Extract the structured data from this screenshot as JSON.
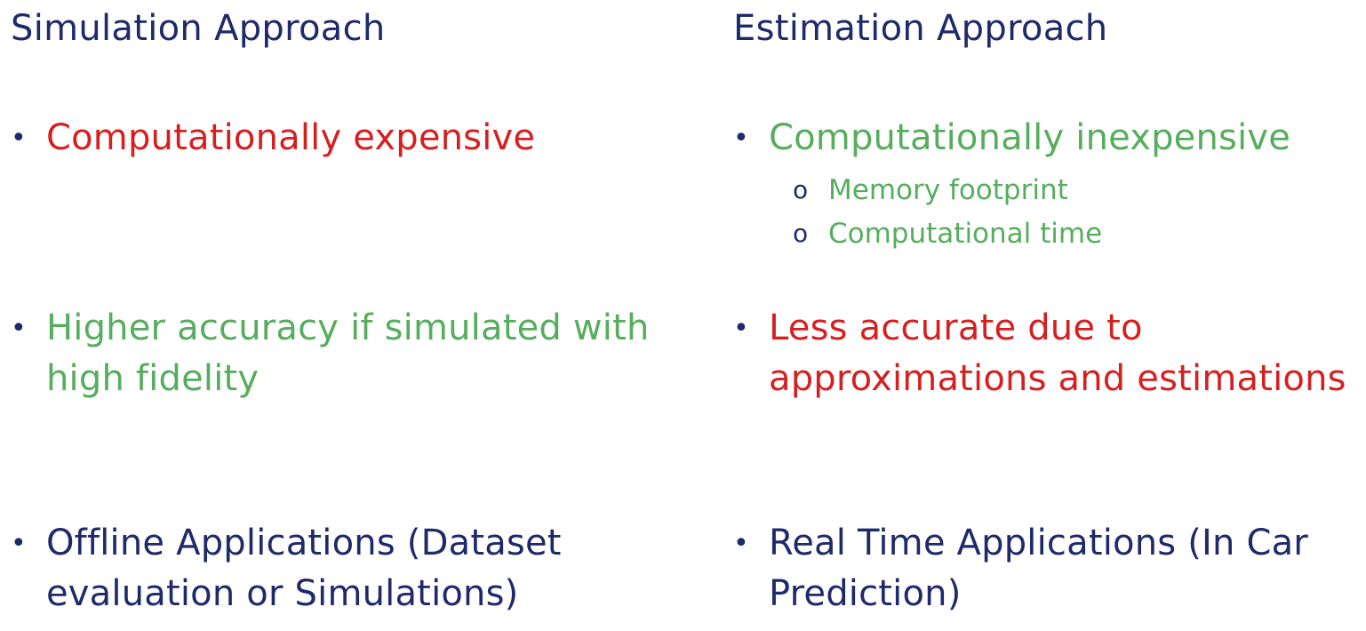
{
  "left": {
    "title": "Simulation Approach",
    "bullets": [
      {
        "lines": [
          "Computationally expensive"
        ],
        "color": "#d61f1f"
      },
      {
        "lines": [
          "Higher accuracy if simulated with",
          "high fidelity"
        ],
        "color": "#57ad5e"
      },
      {
        "lines": [
          "Offline Applications (Dataset",
          "evaluation or Simulations)"
        ],
        "color": "#1f2a6b"
      }
    ]
  },
  "right": {
    "title": "Estimation Approach",
    "bullets": [
      {
        "lines": [
          "Computationally inexpensive"
        ],
        "color": "#57ad5e",
        "subitems": [
          "Memory footprint",
          "Computational time"
        ]
      },
      {
        "lines": [
          "Less accurate due to",
          "approximations and estimations"
        ],
        "color": "#d61f1f"
      },
      {
        "lines": [
          "Real Time Applications (In Car",
          "Prediction)"
        ],
        "color": "#1f2a6b"
      }
    ]
  },
  "bullet_glyph": "•",
  "sub_bullet_glyph": "o"
}
